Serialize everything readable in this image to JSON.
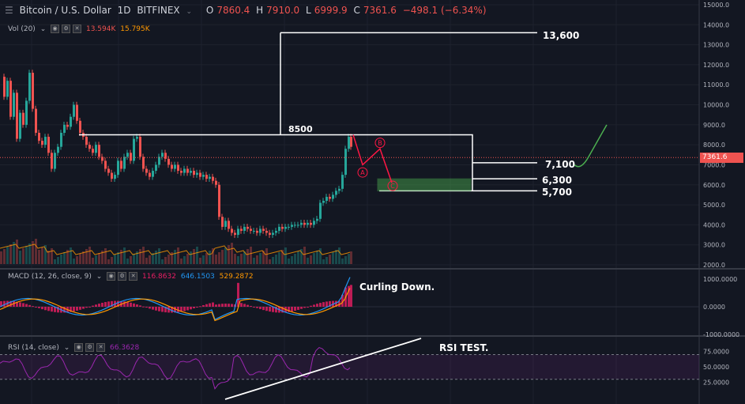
{
  "header": {
    "symbol": "Bitcoin / U.S. Dollar",
    "interval": "1D",
    "exchange": "BITFINEX",
    "open_label": "O",
    "open": "7860.4",
    "high_label": "H",
    "high": "7910.0",
    "low_label": "L",
    "low": "6999.9",
    "close_label": "C",
    "close": "7361.6",
    "change": "−498.1 (−6.34%)"
  },
  "volume_legend": {
    "label": "Vol (20)",
    "value1": "13.594K",
    "value2": "15.795K"
  },
  "macd_legend": {
    "label": "MACD (12, 26, close, 9)",
    "hist": "116.8632",
    "macd": "646.1503",
    "signal": "529.2872"
  },
  "rsi_legend": {
    "label": "RSI (14, close)",
    "value": "66.3628"
  },
  "price_badge": "7361.6",
  "annotations": {
    "target_high": "13,600",
    "resistance": "8500",
    "level_7100": "7,100",
    "level_6300": "6,300",
    "level_5700": "5,700",
    "wave_a": "A",
    "wave_b": "B",
    "wave_c": "C",
    "macd_note": "Curling Down.",
    "rsi_note": "RSI TEST."
  },
  "colors": {
    "background": "#131722",
    "up": "#26a69a",
    "down": "#ef5350",
    "rsi_line": "#9c27b0",
    "macd_line": "#2196f3",
    "signal_line": "#ff9800",
    "hist": "#e91e63",
    "box_fill": "#4caf50",
    "annotation": "#ffffff",
    "projection": "#4caf50"
  },
  "chart_data": {
    "type": "candlestick",
    "price_axis": {
      "ticks": [
        15000,
        14000,
        13000,
        12000,
        11000,
        10000,
        9000,
        8000,
        7000,
        6000,
        5000,
        4000,
        3000,
        2000
      ],
      "range": [
        2000,
        15000
      ],
      "grid": true
    },
    "price_path": [
      [
        0,
        11400
      ],
      [
        4,
        10400
      ],
      [
        8,
        11200
      ],
      [
        12,
        9400
      ],
      [
        16,
        10600
      ],
      [
        20,
        8300
      ],
      [
        24,
        9600
      ],
      [
        28,
        9000
      ],
      [
        32,
        10200
      ],
      [
        36,
        11600
      ],
      [
        40,
        9800
      ],
      [
        44,
        8600
      ],
      [
        48,
        8200
      ],
      [
        52,
        8000
      ],
      [
        56,
        8400
      ],
      [
        60,
        7600
      ],
      [
        64,
        6800
      ],
      [
        68,
        7600
      ],
      [
        72,
        7900
      ],
      [
        76,
        8600
      ],
      [
        80,
        9000
      ],
      [
        84,
        8900
      ],
      [
        88,
        9400
      ],
      [
        92,
        10000
      ],
      [
        96,
        9200
      ],
      [
        100,
        8600
      ],
      [
        104,
        8400
      ],
      [
        108,
        8000
      ],
      [
        112,
        7800
      ],
      [
        116,
        7600
      ],
      [
        120,
        8000
      ],
      [
        124,
        7400
      ],
      [
        128,
        7200
      ],
      [
        132,
        6800
      ],
      [
        136,
        6600
      ],
      [
        140,
        6300
      ],
      [
        144,
        6500
      ],
      [
        148,
        7200
      ],
      [
        152,
        6800
      ],
      [
        156,
        7400
      ],
      [
        160,
        7600
      ],
      [
        164,
        7200
      ],
      [
        168,
        8300
      ],
      [
        172,
        8400
      ],
      [
        176,
        7400
      ],
      [
        180,
        6800
      ],
      [
        184,
        6600
      ],
      [
        188,
        6400
      ],
      [
        192,
        6700
      ],
      [
        196,
        7000
      ],
      [
        200,
        7400
      ],
      [
        204,
        7600
      ],
      [
        208,
        7300
      ],
      [
        212,
        7000
      ],
      [
        216,
        6800
      ],
      [
        220,
        7000
      ],
      [
        224,
        6700
      ],
      [
        228,
        6600
      ],
      [
        232,
        6800
      ],
      [
        236,
        6600
      ],
      [
        240,
        6700
      ],
      [
        244,
        6500
      ],
      [
        248,
        6600
      ],
      [
        252,
        6400
      ],
      [
        256,
        6500
      ],
      [
        260,
        6300
      ],
      [
        264,
        6400
      ],
      [
        268,
        6200
      ],
      [
        272,
        6000
      ],
      [
        276,
        4400
      ],
      [
        280,
        3900
      ],
      [
        284,
        4200
      ],
      [
        288,
        3800
      ],
      [
        292,
        3600
      ],
      [
        296,
        3500
      ],
      [
        300,
        3800
      ],
      [
        304,
        3700
      ],
      [
        308,
        3900
      ],
      [
        312,
        3800
      ],
      [
        316,
        3700
      ],
      [
        320,
        3700
      ],
      [
        324,
        3600
      ],
      [
        328,
        3800
      ],
      [
        332,
        3700
      ],
      [
        336,
        3600
      ],
      [
        340,
        3500
      ],
      [
        344,
        3600
      ],
      [
        348,
        3700
      ],
      [
        352,
        3900
      ],
      [
        356,
        3800
      ],
      [
        360,
        3900
      ],
      [
        364,
        3900
      ],
      [
        368,
        4000
      ],
      [
        372,
        4000
      ],
      [
        376,
        4000
      ],
      [
        380,
        4100
      ],
      [
        384,
        4000
      ],
      [
        388,
        4100
      ],
      [
        392,
        4000
      ],
      [
        396,
        4200
      ],
      [
        400,
        4300
      ],
      [
        404,
        5100
      ],
      [
        408,
        5200
      ],
      [
        412,
        5400
      ],
      [
        416,
        5300
      ],
      [
        420,
        5500
      ],
      [
        424,
        5700
      ],
      [
        428,
        5800
      ],
      [
        432,
        6500
      ],
      [
        436,
        7800
      ],
      [
        440,
        8400
      ],
      [
        443,
        7900
      ]
    ],
    "last_close": 7361.6,
    "levels": [
      13600,
      8500,
      7100,
      6300,
      5700
    ],
    "macd_axis": {
      "ticks": [
        1000,
        0,
        -1000
      ]
    },
    "rsi_axis": {
      "ticks": [
        75,
        50,
        25
      ],
      "bands": [
        70,
        30
      ]
    }
  }
}
